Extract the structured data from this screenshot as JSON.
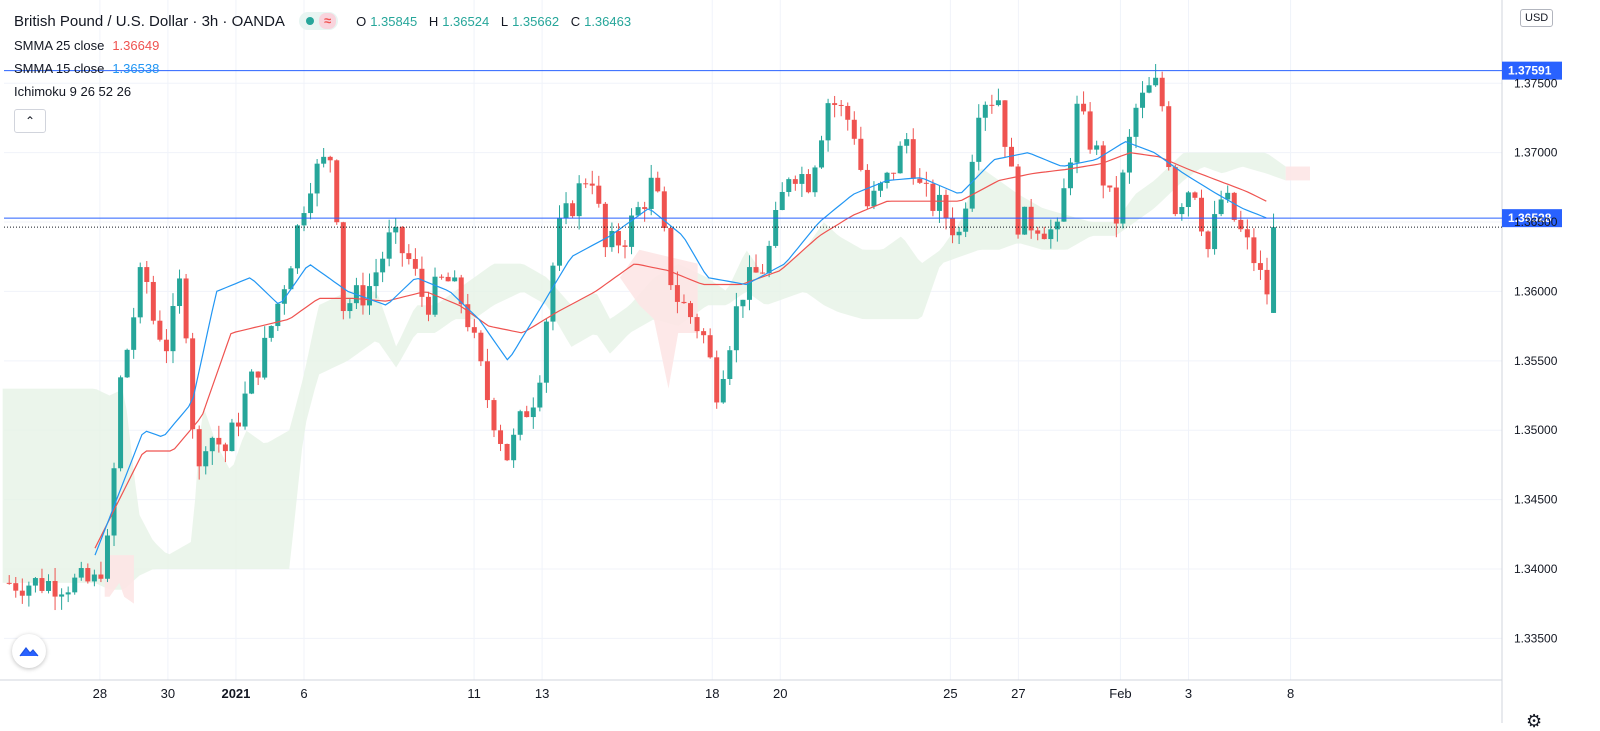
{
  "header": {
    "symbol_title": "British Pound / U.S. Dollar · 3h · OANDA",
    "ohlc": {
      "o_label": "O",
      "o": "1.35845",
      "h_label": "H",
      "h": "1.36524",
      "l_label": "L",
      "l": "1.35662",
      "c_label": "C",
      "c": "1.36463"
    },
    "wave_glyph": "≈"
  },
  "indicators": [
    {
      "label": "SMMA 25 close",
      "value": "1.36649",
      "color": "#ef5350"
    },
    {
      "label": "SMMA 15 close",
      "value": "1.36538",
      "color": "#2196f3"
    },
    {
      "label": "Ichimoku 9 26 52 26",
      "value": "",
      "color": "#131722"
    }
  ],
  "collapse_glyph": "⌃",
  "currency_badge": "USD",
  "settings_glyph": "⚙",
  "colors": {
    "up": "#26a69a",
    "down": "#ef5350",
    "smma25": "#ef5350",
    "smma15": "#2196f3",
    "hline": "#2962ff",
    "cloud_bull": "#e6f3e6",
    "cloud_bear": "#fde6e6",
    "grid": "#f0f3fa"
  },
  "chart_data": {
    "type": "candlestick",
    "title": "British Pound / U.S. Dollar · 3h · OANDA",
    "ylim": [
      1.332,
      1.381
    ],
    "y_ticks": [
      "1.33500",
      "1.34000",
      "1.34500",
      "1.35000",
      "1.35500",
      "1.36000",
      "1.36500",
      "1.37000",
      "1.37500"
    ],
    "x_ticks": [
      {
        "label": "28",
        "pos": 0.1
      },
      {
        "label": "30",
        "pos": 1.5
      },
      {
        "label": "2021",
        "pos": 2.9,
        "bold": true
      },
      {
        "label": "6",
        "pos": 4.3
      },
      {
        "label": "11",
        "pos": 7.8
      },
      {
        "label": "13",
        "pos": 9.2
      },
      {
        "label": "18",
        "pos": 12.7
      },
      {
        "label": "20",
        "pos": 14.1
      },
      {
        "label": "25",
        "pos": 17.6
      },
      {
        "label": "27",
        "pos": 19.0
      },
      {
        "label": "Feb",
        "pos": 21.1
      },
      {
        "label": "3",
        "pos": 22.5
      },
      {
        "label": "8",
        "pos": 24.6
      }
    ],
    "horizontal_lines": [
      {
        "label": "1.37591",
        "value": 1.37591
      },
      {
        "label": "1.36528",
        "value": 1.36528
      }
    ],
    "last_price": 1.36463,
    "close_anchors": [
      [
        0,
        1.339
      ],
      [
        0.3,
        1.342
      ],
      [
        0.5,
        1.353
      ],
      [
        1,
        1.362
      ],
      [
        1.2,
        1.358
      ],
      [
        1.5,
        1.356
      ],
      [
        1.8,
        1.3615
      ],
      [
        2.1,
        1.346
      ],
      [
        2.3,
        1.35
      ],
      [
        2.7,
        1.3485
      ],
      [
        3,
        1.3515
      ],
      [
        3.5,
        1.356
      ],
      [
        4,
        1.362
      ],
      [
        4.4,
        1.368
      ],
      [
        4.9,
        1.37
      ],
      [
        5.1,
        1.359
      ],
      [
        5.6,
        1.36
      ],
      [
        6.1,
        1.364
      ],
      [
        6.5,
        1.362
      ],
      [
        6.8,
        1.359
      ],
      [
        7.2,
        1.361
      ],
      [
        7.6,
        1.359
      ],
      [
        8.1,
        1.352
      ],
      [
        8.5,
        1.348
      ],
      [
        8.8,
        1.351
      ],
      [
        9.1,
        1.353
      ],
      [
        9.5,
        1.364
      ],
      [
        10.2,
        1.369
      ],
      [
        10.5,
        1.363
      ],
      [
        10.9,
        1.364
      ],
      [
        11.5,
        1.368
      ],
      [
        11.9,
        1.36
      ],
      [
        12.5,
        1.357
      ],
      [
        12.8,
        1.353
      ],
      [
        13.3,
        1.36
      ],
      [
        13.8,
        1.362
      ],
      [
        14.3,
        1.369
      ],
      [
        14.7,
        1.368
      ],
      [
        15.1,
        1.374
      ],
      [
        15.6,
        1.372
      ],
      [
        15.9,
        1.366
      ],
      [
        16.3,
        1.368
      ],
      [
        16.7,
        1.371
      ],
      [
        17.0,
        1.367
      ],
      [
        17.4,
        1.366
      ],
      [
        17.8,
        1.364
      ],
      [
        18.2,
        1.374
      ],
      [
        18.6,
        1.374
      ],
      [
        19.0,
        1.365
      ],
      [
        19.4,
        1.365
      ],
      [
        19.8,
        1.364
      ],
      [
        20.2,
        1.373
      ],
      [
        20.6,
        1.37
      ],
      [
        21.0,
        1.365
      ],
      [
        21.4,
        1.373
      ],
      [
        21.8,
        1.375
      ],
      [
        22.0,
        1.373
      ],
      [
        22.2,
        1.366
      ],
      [
        22.6,
        1.368
      ],
      [
        22.9,
        1.363
      ],
      [
        23.2,
        1.367
      ],
      [
        23.6,
        1.364
      ],
      [
        23.9,
        1.362
      ],
      [
        24.1,
        1.3595
      ],
      [
        24.25,
        1.3646
      ]
    ],
    "smma15_anchors": [
      [
        0,
        1.341
      ],
      [
        1.0,
        1.35
      ],
      [
        1.4,
        1.3495
      ],
      [
        2.0,
        1.352
      ],
      [
        2.5,
        1.36
      ],
      [
        3.2,
        1.361
      ],
      [
        3.8,
        1.359
      ],
      [
        4.4,
        1.362
      ],
      [
        5.2,
        1.36
      ],
      [
        6.0,
        1.359
      ],
      [
        6.6,
        1.361
      ],
      [
        7.3,
        1.36
      ],
      [
        7.9,
        1.358
      ],
      [
        8.5,
        1.355
      ],
      [
        9.2,
        1.359
      ],
      [
        9.8,
        1.3625
      ],
      [
        10.6,
        1.364
      ],
      [
        11.4,
        1.366
      ],
      [
        12.1,
        1.364
      ],
      [
        12.6,
        1.361
      ],
      [
        13.4,
        1.3605
      ],
      [
        14.2,
        1.362
      ],
      [
        14.9,
        1.365
      ],
      [
        15.6,
        1.367
      ],
      [
        16.3,
        1.368
      ],
      [
        17.0,
        1.3682
      ],
      [
        17.8,
        1.367
      ],
      [
        18.5,
        1.3695
      ],
      [
        19.2,
        1.37
      ],
      [
        19.9,
        1.369
      ],
      [
        20.6,
        1.3695
      ],
      [
        21.2,
        1.3708
      ],
      [
        21.8,
        1.37
      ],
      [
        22.4,
        1.3685
      ],
      [
        23.0,
        1.3672
      ],
      [
        23.6,
        1.366
      ],
      [
        24.1,
        1.3653
      ]
    ],
    "smma25_anchors": [
      [
        0,
        1.3415
      ],
      [
        1.0,
        1.3485
      ],
      [
        1.6,
        1.3485
      ],
      [
        2.2,
        1.351
      ],
      [
        2.8,
        1.357
      ],
      [
        3.4,
        1.3575
      ],
      [
        4.0,
        1.358
      ],
      [
        4.6,
        1.3595
      ],
      [
        5.3,
        1.3595
      ],
      [
        6.0,
        1.3593
      ],
      [
        6.8,
        1.36
      ],
      [
        7.5,
        1.359
      ],
      [
        8.1,
        1.3575
      ],
      [
        8.8,
        1.357
      ],
      [
        9.5,
        1.3585
      ],
      [
        10.3,
        1.36
      ],
      [
        11.1,
        1.362
      ],
      [
        11.8,
        1.3615
      ],
      [
        12.5,
        1.3605
      ],
      [
        13.3,
        1.3605
      ],
      [
        14.1,
        1.3615
      ],
      [
        14.9,
        1.364
      ],
      [
        15.6,
        1.3655
      ],
      [
        16.3,
        1.3665
      ],
      [
        17.0,
        1.3665
      ],
      [
        17.8,
        1.3665
      ],
      [
        18.6,
        1.368
      ],
      [
        19.3,
        1.3685
      ],
      [
        20.0,
        1.3688
      ],
      [
        20.7,
        1.3692
      ],
      [
        21.3,
        1.37
      ],
      [
        21.9,
        1.3697
      ],
      [
        22.5,
        1.3688
      ],
      [
        23.1,
        1.368
      ],
      [
        23.7,
        1.3672
      ],
      [
        24.1,
        1.3665
      ]
    ],
    "cloud_top": [
      [
        0,
        1.353
      ],
      [
        0.3,
        1.3525
      ],
      [
        0.6,
        1.353
      ],
      [
        0.9,
        1.344
      ],
      [
        1.2,
        1.342
      ],
      [
        1.5,
        1.341
      ],
      [
        2.0,
        1.342
      ],
      [
        2.2,
        1.352
      ],
      [
        2.5,
        1.349
      ],
      [
        2.8,
        1.347
      ],
      [
        3.1,
        1.35
      ],
      [
        3.5,
        1.349
      ],
      [
        4.0,
        1.35
      ],
      [
        4.3,
        1.354
      ],
      [
        4.6,
        1.359
      ],
      [
        5.2,
        1.36
      ],
      [
        5.8,
        1.36
      ],
      [
        6.2,
        1.356
      ],
      [
        6.6,
        1.359
      ],
      [
        7.0,
        1.359
      ],
      [
        7.4,
        1.36
      ],
      [
        7.8,
        1.361
      ],
      [
        8.2,
        1.362
      ],
      [
        8.8,
        1.362
      ],
      [
        9.3,
        1.361
      ],
      [
        9.8,
        1.359
      ],
      [
        10.3,
        1.36
      ],
      [
        10.6,
        1.358
      ],
      [
        11.0,
        1.359
      ],
      [
        11.5,
        1.361
      ],
      [
        12.0,
        1.362
      ],
      [
        12.6,
        1.361
      ],
      [
        13.0,
        1.36
      ],
      [
        13.4,
        1.363
      ],
      [
        13.8,
        1.361
      ],
      [
        14.2,
        1.362
      ],
      [
        14.6,
        1.363
      ],
      [
        15.0,
        1.365
      ],
      [
        15.3,
        1.364
      ],
      [
        15.8,
        1.363
      ],
      [
        16.2,
        1.363
      ],
      [
        16.6,
        1.364
      ],
      [
        17.0,
        1.362
      ],
      [
        17.4,
        1.363
      ],
      [
        17.8,
        1.365
      ],
      [
        18.2,
        1.369
      ],
      [
        18.6,
        1.368
      ],
      [
        19.0,
        1.367
      ],
      [
        19.5,
        1.366
      ],
      [
        20.0,
        1.3655
      ],
      [
        20.5,
        1.365
      ],
      [
        21.0,
        1.365
      ],
      [
        21.4,
        1.367
      ],
      [
        21.8,
        1.368
      ],
      [
        22.4,
        1.37
      ],
      [
        22.8,
        1.37
      ],
      [
        23.2,
        1.37
      ],
      [
        23.6,
        1.37
      ],
      [
        24.1,
        1.37
      ],
      [
        24.5,
        1.369
      ]
    ],
    "cloud_bottom": [
      [
        0,
        1.339
      ],
      [
        0.3,
        1.3385
      ],
      [
        0.6,
        1.3385
      ],
      [
        0.9,
        1.3395
      ],
      [
        1.2,
        1.34
      ],
      [
        1.5,
        1.34
      ],
      [
        2.0,
        1.34
      ],
      [
        2.3,
        1.34
      ],
      [
        2.8,
        1.34
      ],
      [
        3.2,
        1.34
      ],
      [
        3.6,
        1.34
      ],
      [
        4.0,
        1.34
      ],
      [
        4.3,
        1.35
      ],
      [
        4.6,
        1.354
      ],
      [
        5.2,
        1.355
      ],
      [
        5.8,
        1.3565
      ],
      [
        6.2,
        1.3545
      ],
      [
        6.6,
        1.357
      ],
      [
        7.0,
        1.357
      ],
      [
        7.4,
        1.358
      ],
      [
        7.8,
        1.358
      ],
      [
        8.2,
        1.359
      ],
      [
        8.8,
        1.36
      ],
      [
        9.3,
        1.359
      ],
      [
        9.8,
        1.356
      ],
      [
        10.3,
        1.357
      ],
      [
        10.6,
        1.3555
      ],
      [
        11.0,
        1.357
      ],
      [
        11.5,
        1.358
      ],
      [
        12.0,
        1.3575
      ],
      [
        12.6,
        1.359
      ],
      [
        13.0,
        1.359
      ],
      [
        13.4,
        1.36
      ],
      [
        13.8,
        1.359
      ],
      [
        14.2,
        1.3595
      ],
      [
        14.6,
        1.36
      ],
      [
        15.0,
        1.359
      ],
      [
        15.3,
        1.3585
      ],
      [
        15.8,
        1.358
      ],
      [
        16.2,
        1.358
      ],
      [
        16.6,
        1.358
      ],
      [
        17.0,
        1.358
      ],
      [
        17.4,
        1.362
      ],
      [
        17.8,
        1.3625
      ],
      [
        18.2,
        1.363
      ],
      [
        18.6,
        1.363
      ],
      [
        19.0,
        1.3635
      ],
      [
        19.5,
        1.363
      ],
      [
        20.0,
        1.363
      ],
      [
        20.5,
        1.364
      ],
      [
        21.0,
        1.364
      ],
      [
        21.4,
        1.365
      ],
      [
        21.8,
        1.366
      ],
      [
        22.4,
        1.368
      ],
      [
        22.8,
        1.369
      ],
      [
        23.2,
        1.3685
      ],
      [
        23.6,
        1.369
      ],
      [
        24.1,
        1.3685
      ],
      [
        24.5,
        1.368
      ]
    ]
  }
}
